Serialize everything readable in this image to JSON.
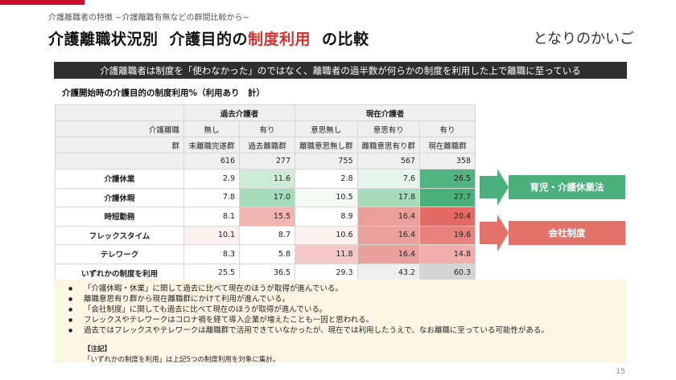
{
  "header": {
    "subtitle": "介護離職者の特徴 ~介護離職有無などの群間比較から~",
    "title_part1": "介護離職状況別",
    "title_part2": "介護目的の",
    "title_highlight": "制度利用",
    "title_part3": "の比較",
    "logo": "となりのかいご"
  },
  "banner": "介護離職者は制度を「使わなかった」のではなく、離職者の過半数が何らかの制度を利用した上で離職に至っている",
  "table": {
    "caption": "介護開始時の介護目的の制度利用%（利用あり　計）",
    "group_past": "過去介護者",
    "group_current": "現在介護者",
    "row_label_1": "介護離職",
    "row_label_2": "群",
    "sub1": [
      "無し",
      "有り",
      "意思無し",
      "意思有り",
      "有り"
    ],
    "sub2": [
      "未離職完遂群",
      "過去離職群",
      "離職意思無し群",
      "離職意思有り群",
      "現在離職群"
    ],
    "n": [
      "616",
      "277",
      "755",
      "567",
      "358"
    ],
    "rows": [
      {
        "label": "介護休業",
        "values": [
          "2.9",
          "11.6",
          "2.8",
          "7.6",
          "26.5"
        ]
      },
      {
        "label": "介護休暇",
        "values": [
          "7.8",
          "17.0",
          "10.5",
          "17.8",
          "27.7"
        ]
      },
      {
        "label": "時短勤務",
        "values": [
          "8.1",
          "15.5",
          "8.9",
          "16.4",
          "20.4"
        ]
      },
      {
        "label": "フレックスタイム",
        "values": [
          "10.1",
          "8.7",
          "10.6",
          "16.4",
          "19.6"
        ]
      },
      {
        "label": "テレワーク",
        "values": [
          "8.3",
          "5.8",
          "11.8",
          "16.4",
          "14.8"
        ]
      },
      {
        "label": "いずれかの制度を利用",
        "values": [
          "25.5",
          "36.5",
          "29.3",
          "43.2",
          "60.3"
        ]
      }
    ],
    "colors": [
      [
        "#ffffff",
        "#cdebd7",
        "#ffffff",
        "#e6f5eb",
        "#4fb47f"
      ],
      [
        "#ffffff",
        "#a6dbbb",
        "#f4fbf6",
        "#a6dbbb",
        "#49b07a"
      ],
      [
        "#ffffff",
        "#f2b6b3",
        "#ffffff",
        "#eca09c",
        "#e46a65"
      ],
      [
        "#fdf1f0",
        "#ffffff",
        "#fdf1f0",
        "#eca09c",
        "#e8807b"
      ],
      [
        "#ffffff",
        "#ffffff",
        "#f6c9c6",
        "#eca09c",
        "#f1aeaa"
      ],
      [
        "#ffffff",
        "#ffffff",
        "#ffffff",
        "#eeeeee",
        "#d4d4d4"
      ]
    ]
  },
  "tags": {
    "green": "育児・介護休業法",
    "red": "会社制度",
    "green_color": "#4cb07d",
    "red_color": "#e2716a"
  },
  "notes": {
    "bullets": [
      "「介護休暇・休業」に関して過去に比べて現在のほうが取得が進んでいる。",
      "離職意思有り群から現在離職群にかけて利用が進んでいる。",
      "「会社制度」に関しても過去に比べて現在のほうが取得が進んでいる。",
      "フレックスやテレワークはコロナ禍を経て導入企業が増えたことも一因と思われる。",
      "過去ではフレックスやテレワークは離職群で活用できていなかったが、現在では利用したうえで、なお離職に至っている可能性がある。"
    ],
    "note_head": "【注記】",
    "note_body": "「いずれかの制度を利用」は上記5つの制度利用を対象に集計。"
  },
  "page_number": "15"
}
